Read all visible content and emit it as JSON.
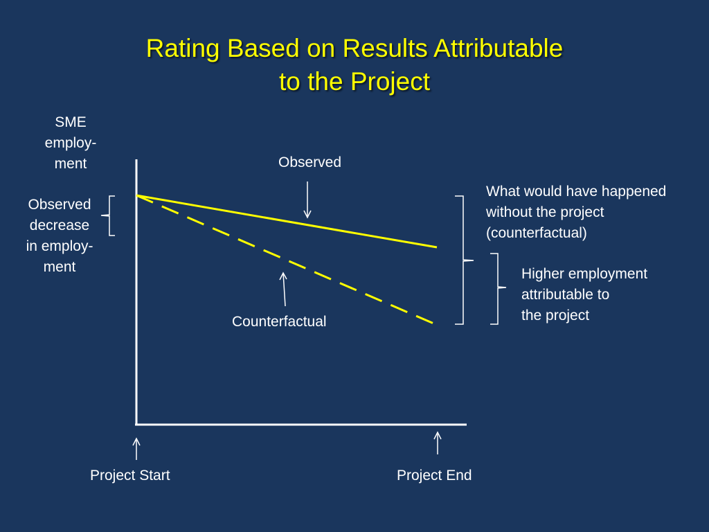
{
  "slide": {
    "title_line1": "Rating Based on Results Attributable",
    "title_line2": "to the Project",
    "title_color": "#ffff00",
    "background_color": "#1a365d"
  },
  "axis": {
    "y_label_line1": "SME",
    "y_label_line2": "employ-",
    "y_label_line3": "ment",
    "start_label": "Project Start",
    "end_label": "Project End"
  },
  "lines": {
    "observed_label": "Observed",
    "counterfactual_label": "Counterfactual",
    "line_color": "#ffff00"
  },
  "annotations": {
    "observed_decrease_line1": "Observed",
    "observed_decrease_line2": "decrease",
    "observed_decrease_line3": "in employ-",
    "observed_decrease_line4": "ment",
    "counterfactual_line1": "What would have happened",
    "counterfactual_line2": "without the project",
    "counterfactual_line3": "(counterfactual)",
    "attributable_line1": "Higher employment",
    "attributable_line2": "attributable to",
    "attributable_line3": "the project"
  }
}
